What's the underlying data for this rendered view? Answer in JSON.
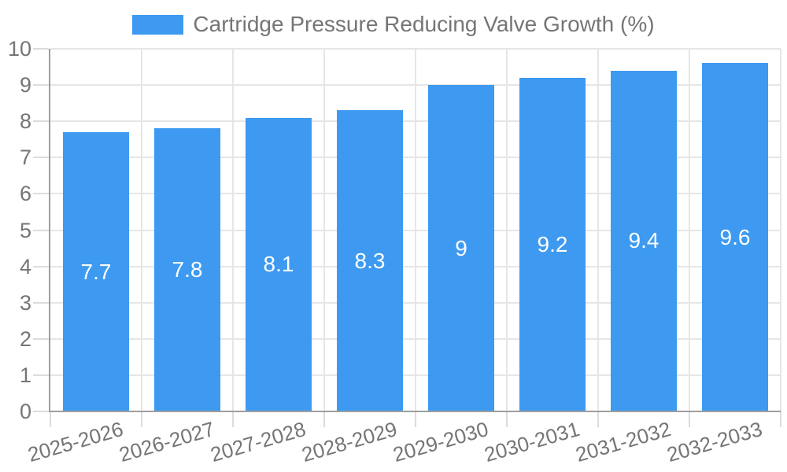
{
  "chart_data": {
    "type": "bar",
    "title": "",
    "legend": {
      "label": "Cartridge Pressure Reducing Valve Growth (%)",
      "position": "top"
    },
    "categories": [
      "2025-2026",
      "2026-2027",
      "2027-2028",
      "2028-2029",
      "2029-2030",
      "2030-2031",
      "2031-2032",
      "2032-2033"
    ],
    "values": [
      7.7,
      7.8,
      8.1,
      8.3,
      9,
      9.2,
      9.4,
      9.6
    ],
    "bar_labels": [
      "7.7",
      "7.8",
      "8.1",
      "8.3",
      "9",
      "9.2",
      "9.4",
      "9.6"
    ],
    "xlabel": "",
    "ylabel": "",
    "ylim": [
      0,
      10
    ],
    "y_ticks": [
      0,
      1,
      2,
      3,
      4,
      5,
      6,
      7,
      8,
      9,
      10
    ],
    "grid": true,
    "x_label_rotation_deg": -16,
    "legend_position": "top-center"
  },
  "colors": {
    "bar": "#3D9AF0",
    "axis": "#9E9E9E",
    "tick": "#DCDCDC",
    "gridline": "#E6E6E6",
    "label_text": "#757575",
    "bar_label_text": "#FFFFFF",
    "background": "#FFFFFF"
  }
}
